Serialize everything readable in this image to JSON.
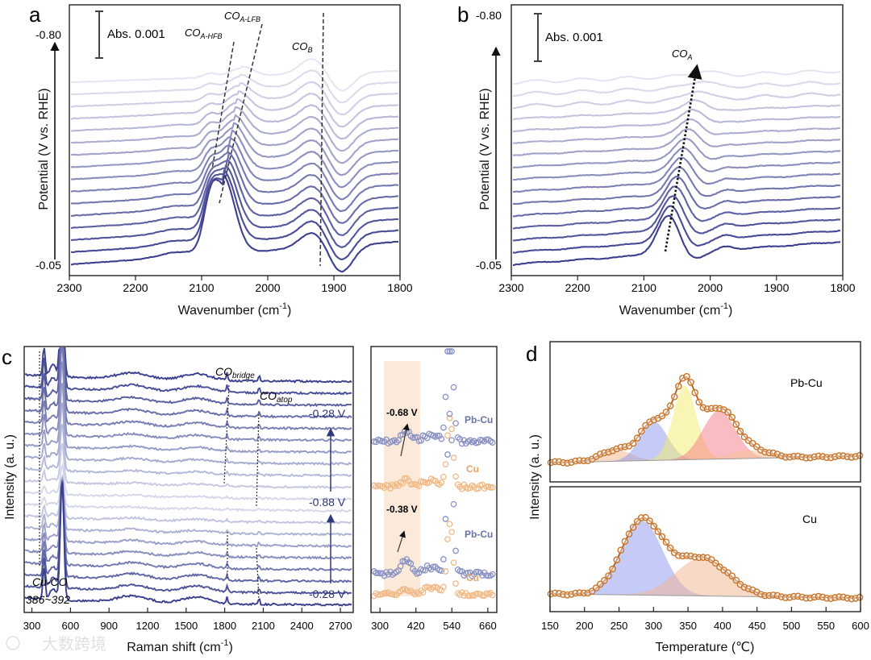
{
  "panels": {
    "a": {
      "label": "a",
      "scale_bar": "Abs. 0.001",
      "ylabel": "Potential (V vs. RHE)",
      "xlabel": "Wavenumber (cm",
      "xlabel_sup": "-1",
      "xlabel_end": ")",
      "pot_top": "-0.80",
      "pot_bottom": "-0.05",
      "ann_hfb": "CO",
      "ann_hfb_sub": "A-HFB",
      "ann_lfb": "CO",
      "ann_lfb_sub": "A-LFB",
      "ann_b": "CO",
      "ann_b_sub": "B"
    },
    "b": {
      "label": "b",
      "scale_bar": "Abs. 0.001",
      "ylabel": "Potential (V vs. RHE)",
      "xlabel": "Wavenumber (cm",
      "xlabel_sup": "-1",
      "xlabel_end": ")",
      "pot_top": "-0.80",
      "pot_bottom": "-0.05",
      "ann_a": "CO",
      "ann_a_sub": "A"
    },
    "c": {
      "label": "c",
      "ylabel": "Intensity (a. u.)",
      "xlabel": "Raman shift (cm",
      "xlabel_sup": "-1",
      "xlabel_end": ")",
      "ann_bridge": "CO",
      "ann_bridge_sub": "bridge",
      "ann_atop": "CO",
      "ann_atop_sub": "atop",
      "ann_cuco": "Cu-CO",
      "ann_range": "386~392",
      "v_top": "-0.28 V",
      "v_mid": "-0.88 V",
      "v_bottom": "-0.28 V",
      "inset_v1": "-0.68 V",
      "inset_v2": "-0.38 V",
      "inset_pbcu": "Pb-Cu",
      "inset_cu": "Cu"
    },
    "d": {
      "label": "d",
      "ylabel": "Intensity (a. u.)",
      "xlabel": "Temperature (℃)",
      "top_label": "Pb-Cu",
      "bottom_label": "Cu"
    },
    "watermark": "大数跨境"
  },
  "chart_data": [
    {
      "panel": "a",
      "type": "line",
      "x_axis": {
        "range": [
          2300,
          1800
        ],
        "ticks": [
          2300,
          2200,
          2100,
          2000,
          1900,
          1800
        ]
      },
      "series_count": 16,
      "potential_range": [
        "-0.05",
        "-0.80"
      ],
      "peaks_cm": {
        "CO_A_HFB": 2075,
        "CO_A_LFB": 2055,
        "CO_B": 1920
      }
    },
    {
      "panel": "b",
      "type": "line",
      "x_axis": {
        "range": [
          2300,
          1800
        ],
        "ticks": [
          2300,
          2200,
          2100,
          2000,
          1900,
          1800
        ]
      },
      "series_count": 16,
      "potential_range": [
        "-0.05",
        "-0.80"
      ],
      "peak_shift_cm": [
        2063,
        2010
      ]
    },
    {
      "panel": "c",
      "type": "line",
      "x_axis": {
        "range": [
          240,
          2800
        ],
        "ticks": [
          300,
          600,
          900,
          1200,
          1500,
          1800,
          2100,
          2400,
          2700
        ]
      },
      "series_count": 20,
      "peaks_cm": [
        389,
        530,
        1820,
        2070
      ]
    },
    {
      "panel": "c-inset",
      "type": "scatter",
      "x_axis": {
        "range": [
          270,
          690
        ],
        "ticks": [
          300,
          420,
          540,
          660
        ]
      },
      "series": [
        {
          "name": "Pb-Cu",
          "potential": "-0.68 V"
        },
        {
          "name": "Cu",
          "potential": "-0.68 V"
        },
        {
          "name": "Pb-Cu",
          "potential": "-0.38 V"
        },
        {
          "name": "Cu",
          "potential": "-0.38 V"
        }
      ]
    },
    {
      "panel": "d",
      "type": "line",
      "x_axis": {
        "range": [
          150,
          600
        ],
        "ticks": [
          150,
          200,
          250,
          300,
          350,
          400,
          450,
          500,
          550,
          600
        ]
      },
      "series": [
        {
          "name": "Pb-Cu",
          "fit_peaks_c": [
            245,
            300,
            345,
            395,
            440
          ]
        },
        {
          "name": "Cu",
          "fit_peaks_c": [
            283,
            370
          ]
        }
      ]
    }
  ]
}
